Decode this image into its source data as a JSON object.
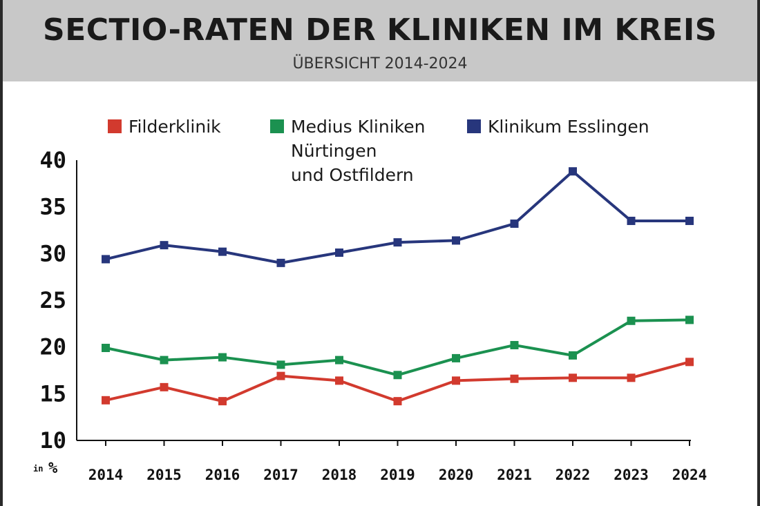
{
  "title": "SECTIO-RATEN DER KLINIKEN IM KREIS",
  "subtitle": "ÜBERSICHT 2014-2024",
  "chart_data": {
    "type": "line",
    "title": "SECTIO-RATEN DER KLINIKEN IM KREIS",
    "subtitle": "ÜBERSICHT 2014-2024",
    "x": [
      "2014",
      "2015",
      "2016",
      "2017",
      "2018",
      "2019",
      "2020",
      "2021",
      "2022",
      "2023",
      "2024"
    ],
    "ylim": [
      10,
      40
    ],
    "yticks": [
      10,
      15,
      20,
      25,
      30,
      35,
      40
    ],
    "yunit": "in %",
    "grid": false,
    "legend_position": "top",
    "series": [
      {
        "name": "Filderklinik",
        "color": "#d23a2e",
        "values": [
          14.3,
          15.7,
          14.2,
          16.9,
          16.4,
          14.2,
          16.4,
          16.6,
          16.7,
          16.7,
          18.4
        ]
      },
      {
        "name": "Medius Kliniken Nürtingen und Ostfildern",
        "name_lines": [
          "Medius Kliniken",
          "Nürtingen",
          "und Ostfildern"
        ],
        "color": "#1b9150",
        "values": [
          19.9,
          18.6,
          18.9,
          18.1,
          18.6,
          17.0,
          18.8,
          20.2,
          19.1,
          22.8,
          22.9
        ]
      },
      {
        "name": "Klinikum Esslingen",
        "color": "#27367c",
        "values": [
          29.4,
          30.9,
          30.2,
          29.0,
          30.1,
          31.2,
          31.4,
          33.2,
          38.8,
          33.5,
          33.5
        ]
      }
    ]
  }
}
